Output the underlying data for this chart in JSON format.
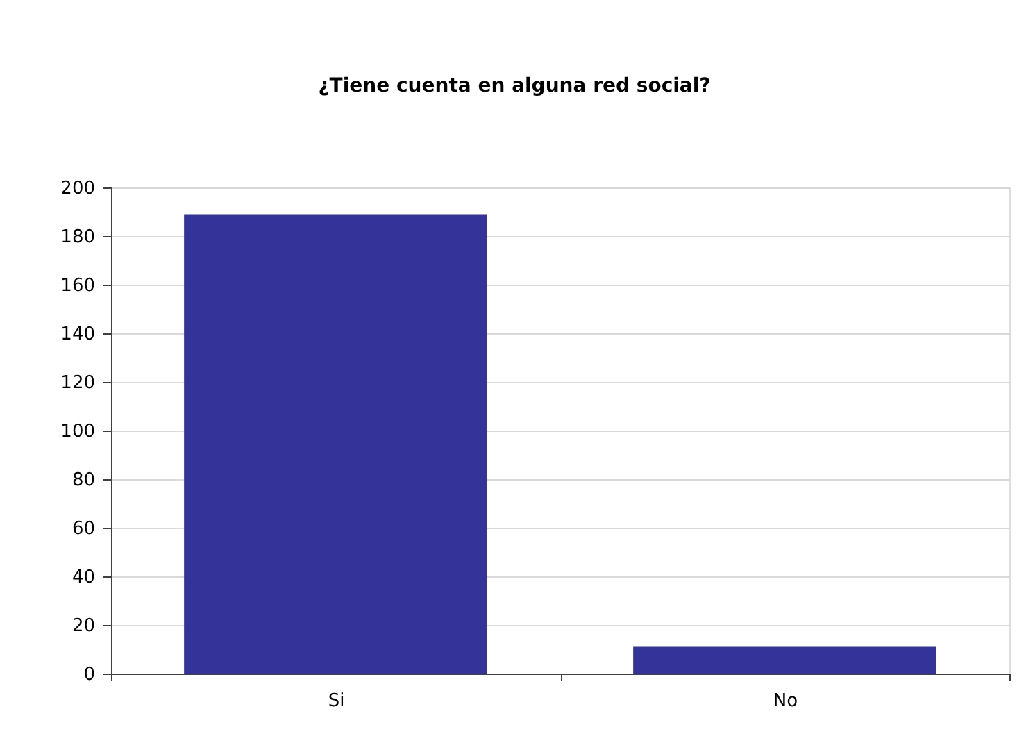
{
  "chart_data": {
    "type": "bar",
    "title": "¿Tiene cuenta en alguna red social?",
    "categories": [
      "Si",
      "No"
    ],
    "values": [
      189,
      11
    ],
    "color": "#333399",
    "ylim": [
      0,
      200
    ],
    "yticks": [
      0,
      20,
      40,
      60,
      80,
      100,
      120,
      140,
      160,
      180,
      200
    ],
    "grid": "y"
  }
}
